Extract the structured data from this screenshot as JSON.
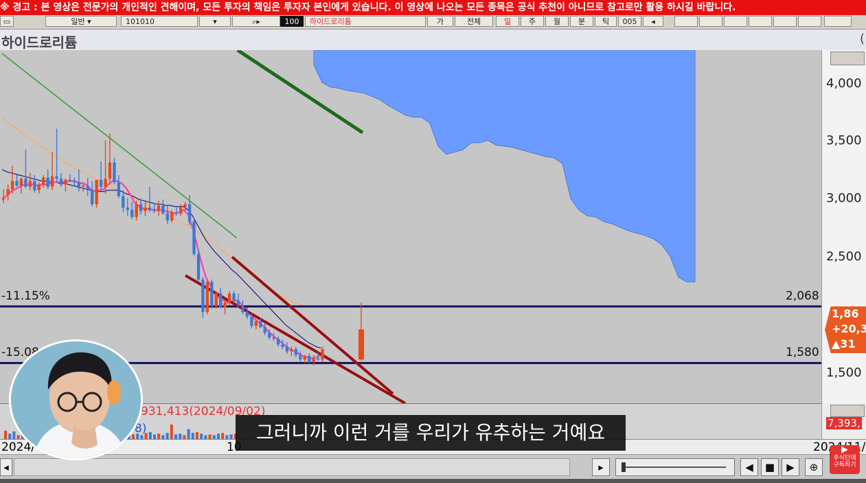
{
  "warning_banner": "※ 경고 : 본 영상은 전문가의 개인적인 견해이며, 모든 투자의 책임은 투자자 본인에게 있습니다. 이 영상에 나오는 모든 종목은 공식 추천이 아니므로 참고로만 활용 하시길 바랍니다.",
  "toolbar": {
    "exchange_select": "일반",
    "code_value": "101010",
    "badge": "100",
    "stock_input": "하이드로리튬",
    "btn_ga": "가",
    "btn_all": "전체",
    "btn_day": "일",
    "btn_week": "주",
    "btn_month": "월",
    "btn_min": "분",
    "btn_tick": "틱",
    "btn_count": "005"
  },
  "title": {
    "stock_name": "하이드로리튬",
    "paren": "("
  },
  "price_axis": {
    "labels": [
      "4,000",
      "3,500",
      "3,000",
      "2,500",
      "1,500"
    ]
  },
  "current_price": {
    "price": "1,86",
    "change": "+20,3",
    "volume": "▲31"
  },
  "levels": {
    "upper_pct": "-11.15%",
    "upper_value": "2,068",
    "lower_pct": "-15.08",
    "lower_value": "1,580"
  },
  "volume_panel": {
    "max_label": "931,413(2024/09/02)",
    "partial_label": "8)",
    "axis_label": "7,393,"
  },
  "date_axis": {
    "left_date": "2024/",
    "mid_date": "10",
    "right_date": "2024/11/"
  },
  "subtitle": "그러니까 이런 거를 우리가 유추하는 거예요",
  "channel_badge": "주식단테\n구독하기",
  "colors": {
    "warning_bg": "#e81010",
    "cloud": "#6b9bff",
    "up_candle": "#e84a18",
    "down_candle": "#3a7ad6",
    "level_line": "#101060",
    "trend_line": "#991010",
    "ma_magenta": "#ff3cb4",
    "ma_navy": "#1e1e7a",
    "ma_orange": "#f0b070",
    "ma_green": "#3aa03a"
  },
  "chart_data": {
    "type": "candlestick",
    "ylim": [
      1500,
      4150
    ],
    "ticks": [
      1500,
      2500,
      3000,
      3500,
      4000
    ],
    "levels": [
      2068,
      1580
    ],
    "candles": [
      {
        "o": 2990,
        "h": 3080,
        "l": 2960,
        "c": 3000
      },
      {
        "o": 3030,
        "h": 3120,
        "l": 2980,
        "c": 3080
      },
      {
        "o": 3080,
        "h": 3280,
        "l": 3040,
        "c": 3150
      },
      {
        "o": 3150,
        "h": 3200,
        "l": 3100,
        "c": 3110
      },
      {
        "o": 3110,
        "h": 3180,
        "l": 3040,
        "c": 3170
      },
      {
        "o": 3170,
        "h": 3420,
        "l": 3090,
        "c": 3100
      },
      {
        "o": 3100,
        "h": 3220,
        "l": 3070,
        "c": 3150
      },
      {
        "o": 3150,
        "h": 3200,
        "l": 3050,
        "c": 3070
      },
      {
        "o": 3070,
        "h": 3140,
        "l": 3040,
        "c": 3120
      },
      {
        "o": 3120,
        "h": 3200,
        "l": 3090,
        "c": 3180
      },
      {
        "o": 3180,
        "h": 3250,
        "l": 3080,
        "c": 3100
      },
      {
        "o": 3100,
        "h": 3400,
        "l": 3070,
        "c": 3190
      },
      {
        "o": 3190,
        "h": 3600,
        "l": 3140,
        "c": 3170
      },
      {
        "o": 3170,
        "h": 3220,
        "l": 3100,
        "c": 3120
      },
      {
        "o": 3120,
        "h": 3170,
        "l": 3060,
        "c": 3160
      },
      {
        "o": 3160,
        "h": 3210,
        "l": 3140,
        "c": 3150
      },
      {
        "o": 3150,
        "h": 3180,
        "l": 3110,
        "c": 3140
      },
      {
        "o": 3140,
        "h": 3250,
        "l": 3060,
        "c": 3100
      },
      {
        "o": 3100,
        "h": 3140,
        "l": 3060,
        "c": 3110
      },
      {
        "o": 3110,
        "h": 3180,
        "l": 3020,
        "c": 3070
      },
      {
        "o": 3070,
        "h": 3150,
        "l": 2930,
        "c": 2950
      },
      {
        "o": 2950,
        "h": 3150,
        "l": 2920,
        "c": 3160
      },
      {
        "o": 3160,
        "h": 3320,
        "l": 3080,
        "c": 3100
      },
      {
        "o": 3100,
        "h": 3500,
        "l": 3040,
        "c": 3170
      },
      {
        "o": 3170,
        "h": 3560,
        "l": 3120,
        "c": 3310
      },
      {
        "o": 3310,
        "h": 3350,
        "l": 3120,
        "c": 3140
      },
      {
        "o": 3140,
        "h": 3200,
        "l": 3000,
        "c": 3020
      },
      {
        "o": 3020,
        "h": 3070,
        "l": 2880,
        "c": 2920
      },
      {
        "o": 2920,
        "h": 3000,
        "l": 2850,
        "c": 2900
      },
      {
        "o": 2900,
        "h": 2970,
        "l": 2820,
        "c": 2840
      },
      {
        "o": 2840,
        "h": 2980,
        "l": 2810,
        "c": 2950
      },
      {
        "o": 2950,
        "h": 3000,
        "l": 2860,
        "c": 2890
      },
      {
        "o": 2890,
        "h": 2970,
        "l": 2850,
        "c": 2920
      },
      {
        "o": 2920,
        "h": 3100,
        "l": 2880,
        "c": 2900
      },
      {
        "o": 2900,
        "h": 2960,
        "l": 2870,
        "c": 2890
      },
      {
        "o": 2890,
        "h": 2980,
        "l": 2850,
        "c": 2940
      },
      {
        "o": 2940,
        "h": 2990,
        "l": 2860,
        "c": 2870
      },
      {
        "o": 2870,
        "h": 2940,
        "l": 2780,
        "c": 2810
      },
      {
        "o": 2810,
        "h": 2900,
        "l": 2790,
        "c": 2880
      },
      {
        "o": 2880,
        "h": 2920,
        "l": 2850,
        "c": 2870
      },
      {
        "o": 2870,
        "h": 2950,
        "l": 2850,
        "c": 2930
      },
      {
        "o": 2930,
        "h": 2970,
        "l": 2890,
        "c": 2950
      },
      {
        "o": 2950,
        "h": 3030,
        "l": 2770,
        "c": 2800
      },
      {
        "o": 2800,
        "h": 2830,
        "l": 2500,
        "c": 2520
      },
      {
        "o": 2520,
        "h": 2560,
        "l": 2280,
        "c": 2300
      },
      {
        "o": 2300,
        "h": 2320,
        "l": 1970,
        "c": 2020
      },
      {
        "o": 2020,
        "h": 2300,
        "l": 2000,
        "c": 2280
      },
      {
        "o": 2280,
        "h": 2300,
        "l": 2050,
        "c": 2070
      },
      {
        "o": 2070,
        "h": 2200,
        "l": 2050,
        "c": 2180
      },
      {
        "o": 2180,
        "h": 2230,
        "l": 2050,
        "c": 2060
      },
      {
        "o": 2060,
        "h": 2120,
        "l": 2000,
        "c": 2100
      },
      {
        "o": 2100,
        "h": 2200,
        "l": 2080,
        "c": 2180
      },
      {
        "o": 2180,
        "h": 2200,
        "l": 2100,
        "c": 2120
      },
      {
        "o": 2120,
        "h": 2180,
        "l": 2060,
        "c": 2080
      },
      {
        "o": 2080,
        "h": 2120,
        "l": 2000,
        "c": 2020
      },
      {
        "o": 2020,
        "h": 2060,
        "l": 1960,
        "c": 1980
      },
      {
        "o": 1980,
        "h": 2010,
        "l": 1880,
        "c": 1900
      },
      {
        "o": 1900,
        "h": 1960,
        "l": 1870,
        "c": 1940
      },
      {
        "o": 1940,
        "h": 1970,
        "l": 1880,
        "c": 1890
      },
      {
        "o": 1890,
        "h": 1920,
        "l": 1820,
        "c": 1840
      },
      {
        "o": 1840,
        "h": 1870,
        "l": 1780,
        "c": 1800
      },
      {
        "o": 1800,
        "h": 1840,
        "l": 1770,
        "c": 1790
      },
      {
        "o": 1790,
        "h": 1810,
        "l": 1720,
        "c": 1740
      },
      {
        "o": 1740,
        "h": 1780,
        "l": 1700,
        "c": 1720
      },
      {
        "o": 1720,
        "h": 1760,
        "l": 1660,
        "c": 1680
      },
      {
        "o": 1680,
        "h": 1720,
        "l": 1640,
        "c": 1700
      },
      {
        "o": 1700,
        "h": 1720,
        "l": 1630,
        "c": 1650
      },
      {
        "o": 1650,
        "h": 1680,
        "l": 1590,
        "c": 1610
      },
      {
        "o": 1610,
        "h": 1650,
        "l": 1580,
        "c": 1640
      },
      {
        "o": 1640,
        "h": 1660,
        "l": 1570,
        "c": 1590
      },
      {
        "o": 1590,
        "h": 1650,
        "l": 1560,
        "c": 1620
      },
      {
        "o": 1620,
        "h": 1680,
        "l": 1600,
        "c": 1610
      },
      {
        "o": 1610,
        "h": 1720,
        "l": 1590,
        "c": 1700
      },
      {
        "o": 1610,
        "h": 2100,
        "l": 1600,
        "c": 1870
      }
    ],
    "ma5": [
      3000,
      3020,
      3060,
      3080,
      3100,
      3120,
      3120,
      3120,
      3110,
      3120,
      3120,
      3130,
      3140,
      3140,
      3140,
      3150,
      3150,
      3140,
      3130,
      3120,
      3080,
      3060,
      3070,
      3080,
      3120,
      3150,
      3150,
      3130,
      3090,
      3030,
      2960,
      2930,
      2910,
      2910,
      2900,
      2900,
      2900,
      2890,
      2880,
      2870,
      2880,
      2900,
      2860,
      2750,
      2600,
      2450,
      2320,
      2250,
      2180,
      2140,
      2120,
      2100,
      2110,
      2120,
      2090,
      2050,
      2000,
      1960,
      1930,
      1900,
      1860,
      1820,
      1790,
      1760,
      1730,
      1700,
      1680,
      1660,
      1640,
      1630,
      1620,
      1630,
      1650
    ],
    "ma20": [
      3250,
      3230,
      3220,
      3210,
      3200,
      3190,
      3180,
      3170,
      3160,
      3150,
      3150,
      3140,
      3140,
      3130,
      3130,
      3120,
      3110,
      3100,
      3090,
      3080,
      3070,
      3060,
      3060,
      3060,
      3070,
      3070,
      3070,
      3060,
      3040,
      3030,
      3010,
      2990,
      2980,
      2970,
      2960,
      2950,
      2950,
      2940,
      2940,
      2930,
      2930,
      2930,
      2900,
      2850,
      2780,
      2710,
      2640,
      2590,
      2540,
      2500,
      2460,
      2420,
      2380,
      2350,
      2310,
      2270,
      2230,
      2190,
      2150,
      2110,
      2070,
      2030,
      1990,
      1950,
      1910,
      1880,
      1850,
      1820,
      1790,
      1760,
      1740,
      1720,
      1710
    ],
    "ma60": [
      3700,
      3670,
      3640,
      3610,
      3580,
      3550,
      3520,
      3500,
      3470,
      3440,
      3420,
      3390,
      3370,
      3340,
      3320,
      3300,
      3270,
      3250,
      3230,
      3210,
      3190,
      3170,
      3150,
      3130,
      3110,
      3090,
      3070,
      3060,
      3040,
      3020,
      3000,
      2980,
      2960,
      2940,
      2920,
      2900,
      2880,
      2860,
      2840,
      2820,
      2800,
      2780,
      2760,
      2740,
      2720,
      2690,
      2660,
      2630,
      2600,
      2570,
      2540,
      2510,
      2480,
      2450,
      2420,
      2390,
      2360,
      2330,
      2300,
      2270,
      2240,
      2210,
      2180,
      2160,
      2140,
      2120,
      2100,
      2090,
      2080
    ],
    "ma120": [
      4250,
      4220,
      4190,
      4160,
      4130,
      4100,
      4070,
      4040,
      4010,
      3980,
      3950,
      3920,
      3890,
      3860,
      3830,
      3800,
      3770,
      3740,
      3710,
      3680,
      3650,
      3620,
      3590,
      3560,
      3530,
      3500,
      3470,
      3440,
      3410,
      3380,
      3350,
      3320,
      3290,
      3260,
      3230,
      3200,
      3170,
      3140,
      3110,
      3080,
      3050,
      3020,
      2990,
      2960,
      2930,
      2900,
      2870,
      2840,
      2810,
      2780,
      2750,
      2720,
      2690,
      2660
    ],
    "cloud_lower": [
      4150,
      4000,
      3960,
      3950,
      3930,
      3920,
      3910,
      3880,
      3850,
      3800,
      3760,
      3720,
      3700,
      3700,
      3650,
      3450,
      3380,
      3400,
      3420,
      3480,
      3480,
      3500,
      3460,
      3450,
      3440,
      3420,
      3400,
      3380,
      3360,
      3350,
      3300,
      3000,
      2900,
      2850,
      2840,
      2800,
      2780,
      2750,
      2720,
      2700,
      2680,
      2650,
      2600,
      2500,
      2320,
      2280,
      2280
    ],
    "volume": [
      60,
      40,
      55,
      30,
      45,
      50,
      35,
      40,
      30,
      45,
      55,
      40,
      35,
      50,
      45,
      30,
      40,
      35,
      45,
      50,
      40,
      30,
      45,
      55,
      100,
      60,
      70,
      40,
      45,
      30,
      35,
      40,
      30,
      45,
      50,
      35,
      40,
      30,
      45,
      100,
      35,
      40,
      30,
      70,
      45,
      50,
      40,
      30,
      35,
      30,
      40,
      45,
      30,
      35,
      40
    ]
  }
}
